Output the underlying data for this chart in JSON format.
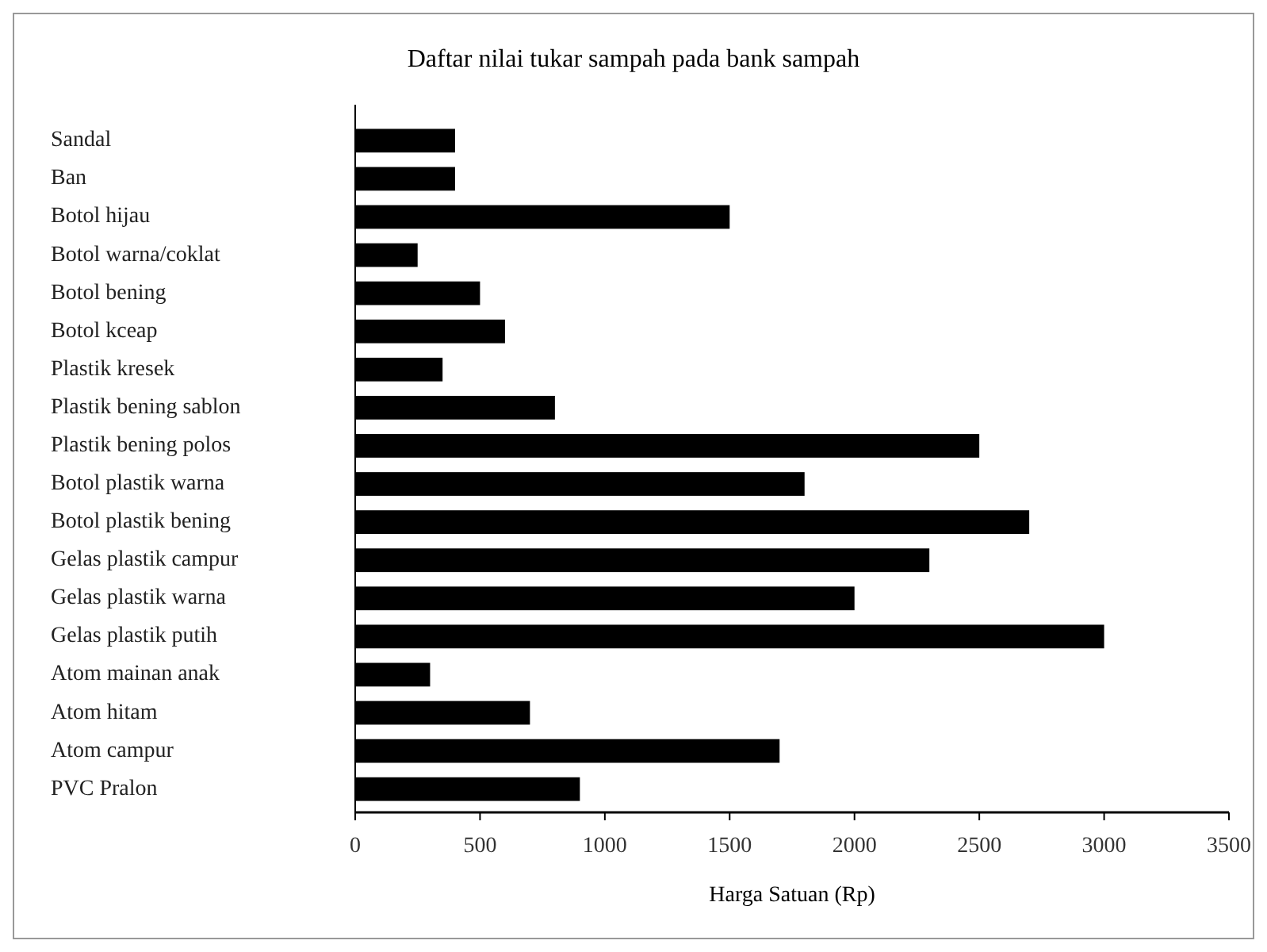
{
  "chart_data": {
    "type": "bar",
    "orientation": "horizontal",
    "title": "Daftar nilai tukar sampah pada bank sampah",
    "xlabel": "Harga Satuan (Rp)",
    "categories": [
      "Sandal",
      "Ban",
      "Botol hijau",
      "Botol warna/coklat",
      "Botol bening",
      "Botol kceap",
      "Plastik kresek",
      "Plastik bening sablon",
      "Plastik bening polos",
      "Botol plastik warna",
      "Botol plastik bening",
      "Gelas plastik campur",
      "Gelas plastik warna",
      "Gelas plastik putih",
      "Atom mainan anak",
      "Atom hitam",
      "Atom campur",
      "PVC Pralon"
    ],
    "values": [
      400,
      400,
      1500,
      250,
      500,
      600,
      350,
      800,
      2500,
      1800,
      2700,
      2300,
      2000,
      3000,
      300,
      700,
      1700,
      900
    ],
    "color": "#000000",
    "xlim": [
      0,
      3500
    ],
    "xticks": [
      0,
      500,
      1000,
      1500,
      2000,
      2500,
      3000,
      3500
    ],
    "grid": false
  }
}
